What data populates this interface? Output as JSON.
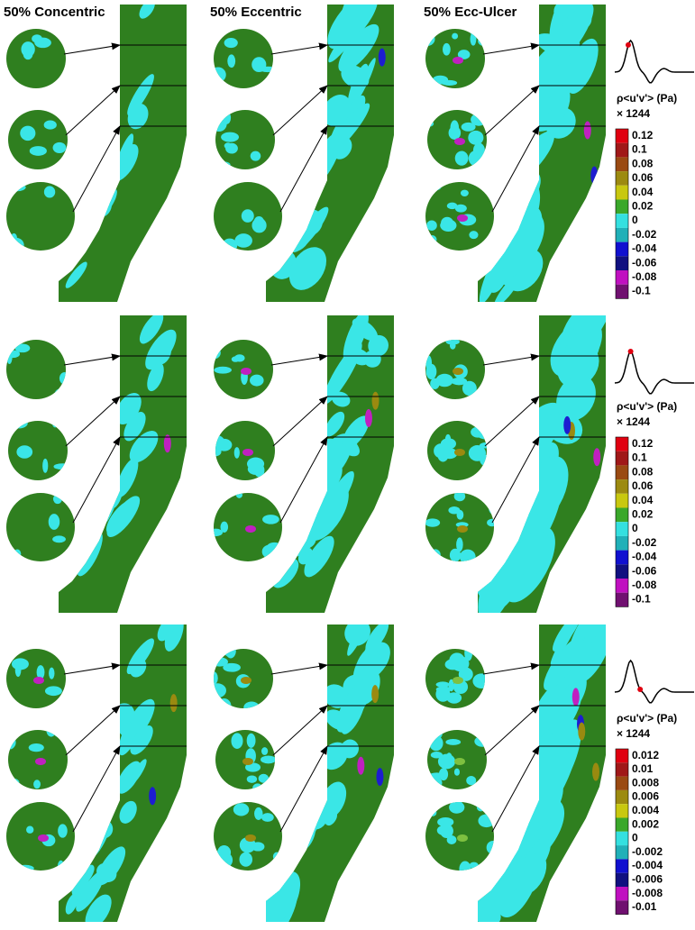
{
  "columns": [
    "50% Concentric",
    "50% Eccentric",
    "50% Ecc-Ulcer"
  ],
  "legends": [
    {
      "title": "ρ<u'v'> (Pa)",
      "scale": "× 1244",
      "ticks": [
        "0.12",
        "0.1",
        "0.08",
        "0.06",
        "0.04",
        "0.02",
        "0",
        "-0.02",
        "-0.04",
        "-0.06",
        "-0.08",
        "-0.1"
      ]
    },
    {
      "title": "ρ<u'v'> (Pa)",
      "scale": "× 1244",
      "ticks": [
        "0.12",
        "0.1",
        "0.08",
        "0.06",
        "0.04",
        "0.02",
        "0",
        "-0.02",
        "-0.04",
        "-0.06",
        "-0.08",
        "-0.1"
      ]
    },
    {
      "title": "ρ<u'v'> (Pa)",
      "scale": "× 1244",
      "ticks": [
        "0.012",
        "0.01",
        "0.008",
        "0.006",
        "0.004",
        "0.002",
        "0",
        "-0.002",
        "-0.004",
        "-0.006",
        "-0.008",
        "-0.01"
      ]
    }
  ],
  "colors": [
    "#e00010",
    "#a01818",
    "#9a4a12",
    "#9c8a10",
    "#c8c810",
    "#3aa82a",
    "#34e0e0",
    "#20b0b8",
    "#1010d0",
    "#101080",
    "#c010c0",
    "#701070"
  ]
}
